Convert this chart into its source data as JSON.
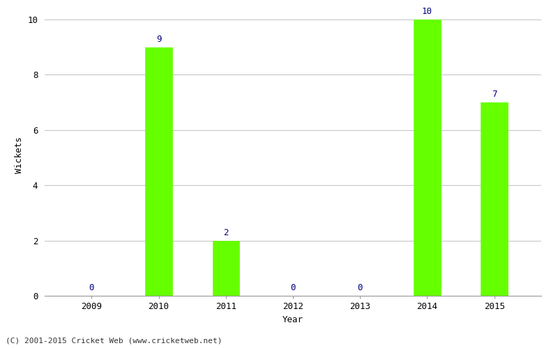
{
  "years": [
    2009,
    2010,
    2011,
    2012,
    2013,
    2014,
    2015
  ],
  "values": [
    0,
    9,
    2,
    0,
    0,
    10,
    7
  ],
  "bar_color": "#66ff00",
  "bar_edgecolor": "#66ff00",
  "ylabel": "Wickets",
  "xlabel": "Year",
  "ylim": [
    0,
    10
  ],
  "yticks": [
    0,
    2,
    4,
    6,
    8,
    10
  ],
  "annotation_color": "#000080",
  "annotation_fontsize": 9,
  "grid_color": "#c8c8c8",
  "background_color": "#ffffff",
  "footer_text": "(C) 2001-2015 Cricket Web (www.cricketweb.net)",
  "footer_fontsize": 8,
  "axis_label_fontsize": 9,
  "tick_fontsize": 9,
  "bar_width": 0.4
}
